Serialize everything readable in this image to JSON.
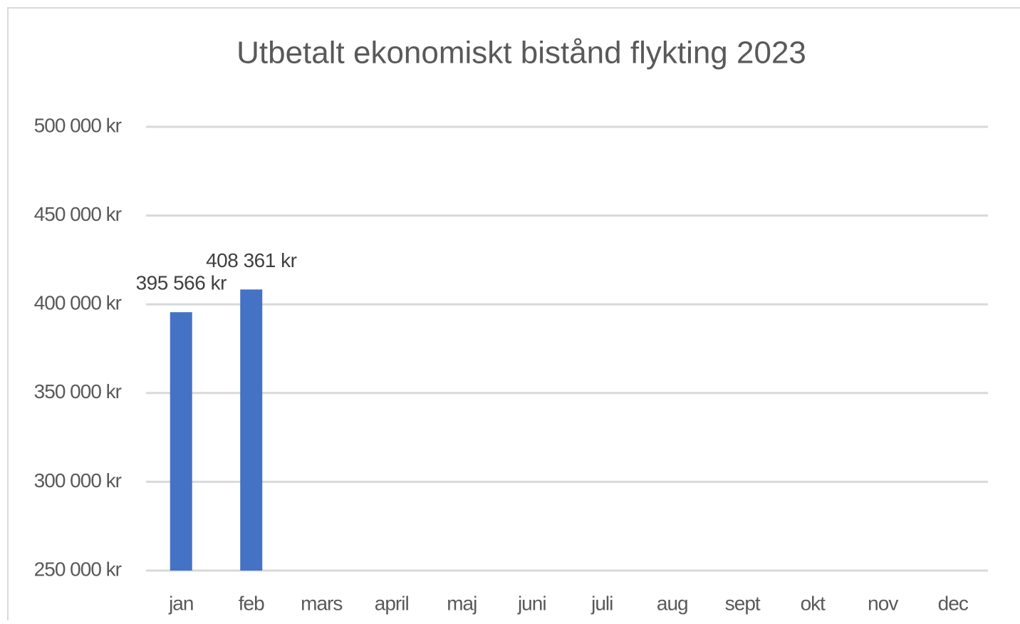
{
  "chart_data": {
    "type": "bar",
    "title": "Utbetalt ekonomiskt bistånd flykting 2023",
    "categories": [
      "jan",
      "feb",
      "mars",
      "april",
      "maj",
      "juni",
      "juli",
      "aug",
      "sept",
      "okt",
      "nov",
      "dec"
    ],
    "values": [
      395566,
      408361,
      null,
      null,
      null,
      null,
      null,
      null,
      null,
      null,
      null,
      null
    ],
    "value_labels": [
      "395 566 kr",
      "408 361 kr",
      null,
      null,
      null,
      null,
      null,
      null,
      null,
      null,
      null,
      null
    ],
    "color": "#4472c4",
    "ylim": [
      250000,
      500000
    ],
    "yticks": [
      {
        "value": 250000,
        "label": "250 000 kr"
      },
      {
        "value": 300000,
        "label": "300 000 kr"
      },
      {
        "value": 350000,
        "label": "350 000 kr"
      },
      {
        "value": 400000,
        "label": "400 000 kr"
      },
      {
        "value": 450000,
        "label": "450 000 kr"
      },
      {
        "value": 500000,
        "label": "500 000 kr"
      }
    ],
    "grid": true
  }
}
